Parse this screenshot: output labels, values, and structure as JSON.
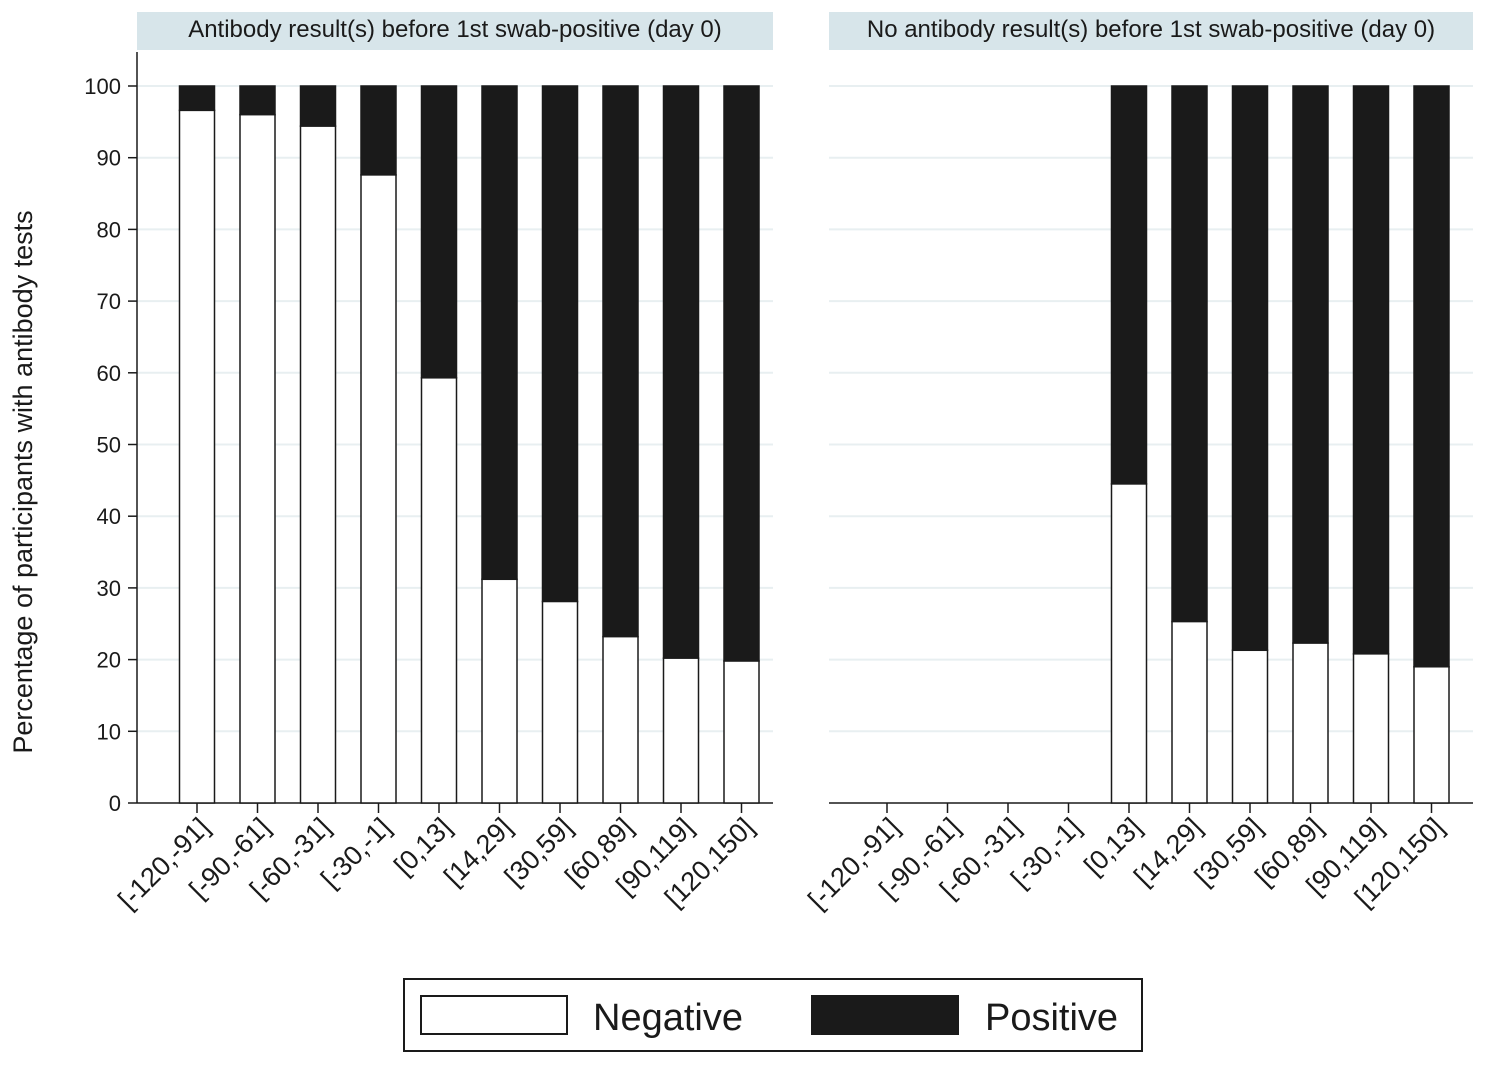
{
  "chart_data": {
    "type": "bar",
    "stacked": true,
    "ylabel": "Percentage of participants with antibody tests",
    "ylim": [
      0,
      100
    ],
    "yticks": [
      0,
      10,
      20,
      30,
      40,
      50,
      60,
      70,
      80,
      90,
      100
    ],
    "grid": true,
    "legend_position": "bottom",
    "categories": [
      "[-120,-91]",
      "[-90,-61]",
      "[-60,-31]",
      "[-30,-1]",
      "[0,13]",
      "[14,29]",
      "[30,59]",
      "[60,89]",
      "[90,119]",
      "[120,150]"
    ],
    "legend": [
      {
        "name": "Negative",
        "color": "#ffffff"
      },
      {
        "name": "Positive",
        "color": "#1a1a1a"
      }
    ],
    "panels": [
      {
        "title": "Antibody result(s) before 1st swab-positive (day 0)",
        "series": [
          {
            "name": "Negative",
            "values": [
              96.6,
              96.0,
              94.4,
              87.6,
              59.3,
              31.2,
              28.1,
              23.2,
              20.2,
              19.8
            ]
          },
          {
            "name": "Positive",
            "values": [
              3.4,
              4.0,
              5.6,
              12.4,
              40.7,
              68.8,
              71.9,
              76.8,
              79.8,
              80.2
            ]
          }
        ]
      },
      {
        "title": "No antibody result(s) before 1st swab-positive (day 0)",
        "series": [
          {
            "name": "Negative",
            "values": [
              null,
              null,
              null,
              null,
              44.5,
              25.3,
              21.3,
              22.3,
              20.8,
              19.0
            ]
          },
          {
            "name": "Positive",
            "values": [
              null,
              null,
              null,
              null,
              55.5,
              74.7,
              78.7,
              77.7,
              79.2,
              81.0
            ]
          }
        ]
      }
    ]
  }
}
